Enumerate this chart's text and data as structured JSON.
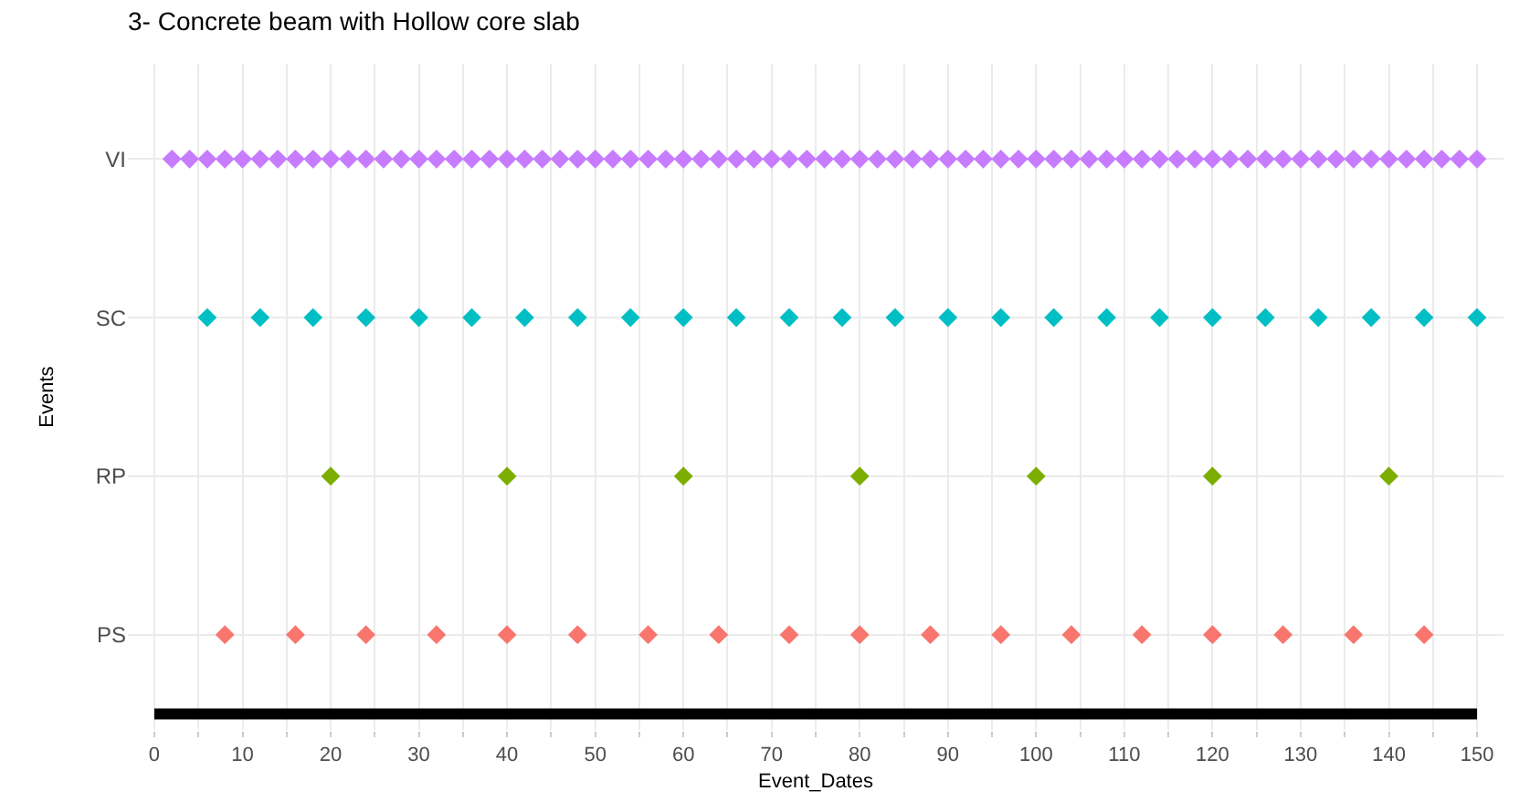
{
  "chart_data": {
    "type": "scatter",
    "orientation": "horizontal",
    "title": "3- Concrete beam with Hollow core slab",
    "xlabel": "Event_Dates",
    "ylabel": "Events",
    "xlim": [
      -3,
      153
    ],
    "xticks": [
      0,
      10,
      20,
      30,
      40,
      50,
      60,
      70,
      80,
      90,
      100,
      110,
      120,
      130,
      140,
      150
    ],
    "categories": [
      "VI",
      "SC",
      "RP",
      "PS"
    ],
    "grid": true,
    "marker": "diamond",
    "series": [
      {
        "colors": [
          "#c77cff",
          "#00bfc4",
          "#7cae00",
          "#f8766d"
        ],
        "values": [
          2,
          6,
          20,
          8
        ]
      },
      {
        "colors": [
          "#c77cff",
          "#00bfc4",
          "#7cae00",
          "#f8766d"
        ],
        "values": [
          4,
          12,
          40,
          16
        ]
      },
      {
        "colors": [
          "#c77cff",
          "#00bfc4",
          "#7cae00",
          "#f8766d"
        ],
        "values": [
          6,
          18,
          60,
          24
        ]
      },
      {
        "colors": [
          "#c77cff",
          "#00bfc4",
          "#7cae00",
          "#f8766d"
        ],
        "values": [
          8,
          24,
          80,
          32
        ]
      },
      {
        "colors": [
          "#c77cff",
          "#00bfc4",
          "#7cae00",
          "#f8766d"
        ],
        "values": [
          10,
          30,
          100,
          40
        ]
      },
      {
        "colors": [
          "#c77cff",
          "#00bfc4",
          "#7cae00",
          "#f8766d"
        ],
        "values": [
          12,
          36,
          120,
          48
        ]
      },
      {
        "colors": [
          "#c77cff",
          "#00bfc4",
          "#7cae00",
          "#f8766d"
        ],
        "values": [
          14,
          42,
          140,
          56
        ]
      },
      {
        "colors": [
          "#c77cff",
          "#00bfc4",
          "#7cae00",
          "#f8766d"
        ],
        "values": [
          16,
          48,
          null,
          64
        ]
      },
      {
        "colors": [
          "#c77cff",
          "#00bfc4",
          "#7cae00",
          "#f8766d"
        ],
        "values": [
          18,
          54,
          null,
          72
        ]
      },
      {
        "colors": [
          "#c77cff",
          "#00bfc4",
          "#7cae00",
          "#f8766d"
        ],
        "values": [
          20,
          60,
          null,
          80
        ]
      },
      {
        "colors": [
          "#c77cff",
          "#00bfc4",
          "#7cae00",
          "#f8766d"
        ],
        "values": [
          22,
          66,
          null,
          88
        ]
      },
      {
        "colors": [
          "#c77cff",
          "#00bfc4",
          "#7cae00",
          "#f8766d"
        ],
        "values": [
          24,
          72,
          null,
          96
        ]
      },
      {
        "colors": [
          "#c77cff",
          "#00bfc4",
          "#7cae00",
          "#f8766d"
        ],
        "values": [
          26,
          78,
          null,
          104
        ]
      },
      {
        "colors": [
          "#c77cff",
          "#00bfc4",
          "#7cae00",
          "#f8766d"
        ],
        "values": [
          28,
          84,
          null,
          112
        ]
      },
      {
        "colors": [
          "#c77cff",
          "#00bfc4",
          "#7cae00",
          "#f8766d"
        ],
        "values": [
          30,
          90,
          null,
          120
        ]
      },
      {
        "colors": [
          "#c77cff",
          "#00bfc4",
          "#7cae00",
          "#f8766d"
        ],
        "values": [
          32,
          96,
          null,
          128
        ]
      },
      {
        "colors": [
          "#c77cff",
          "#00bfc4",
          "#7cae00",
          "#f8766d"
        ],
        "values": [
          34,
          102,
          null,
          136
        ]
      },
      {
        "colors": [
          "#c77cff",
          "#00bfc4",
          "#7cae00",
          "#f8766d"
        ],
        "values": [
          36,
          108,
          null,
          144
        ]
      },
      {
        "colors": [
          "#c77cff",
          "#00bfc4",
          "#7cae00",
          "#f8766d"
        ],
        "values": [
          38,
          114,
          null,
          null
        ]
      },
      {
        "colors": [
          "#c77cff",
          "#00bfc4",
          "#7cae00",
          "#f8766d"
        ],
        "values": [
          40,
          120,
          null,
          null
        ]
      },
      {
        "colors": [
          "#c77cff",
          "#00bfc4",
          "#7cae00",
          "#f8766d"
        ],
        "values": [
          42,
          126,
          null,
          null
        ]
      },
      {
        "colors": [
          "#c77cff",
          "#00bfc4",
          "#7cae00",
          "#f8766d"
        ],
        "values": [
          44,
          132,
          null,
          null
        ]
      },
      {
        "colors": [
          "#c77cff",
          "#00bfc4",
          "#7cae00",
          "#f8766d"
        ],
        "values": [
          46,
          138,
          null,
          null
        ]
      },
      {
        "colors": [
          "#c77cff",
          "#00bfc4",
          "#7cae00",
          "#f8766d"
        ],
        "values": [
          48,
          144,
          null,
          null
        ]
      },
      {
        "colors": [
          "#c77cff",
          "#00bfc4",
          "#7cae00",
          "#f8766d"
        ],
        "values": [
          50,
          150,
          null,
          null
        ]
      },
      {
        "colors": [
          "#c77cff",
          "#00bfc4",
          "#7cae00",
          "#f8766d"
        ],
        "values": [
          52,
          null,
          null,
          null
        ]
      },
      {
        "colors": [
          "#c77cff",
          "#00bfc4",
          "#7cae00",
          "#f8766d"
        ],
        "values": [
          54,
          null,
          null,
          null
        ]
      },
      {
        "colors": [
          "#c77cff",
          "#00bfc4",
          "#7cae00",
          "#f8766d"
        ],
        "values": [
          56,
          null,
          null,
          null
        ]
      },
      {
        "colors": [
          "#c77cff",
          "#00bfc4",
          "#7cae00",
          "#f8766d"
        ],
        "values": [
          58,
          null,
          null,
          null
        ]
      },
      {
        "colors": [
          "#c77cff",
          "#00bfc4",
          "#7cae00",
          "#f8766d"
        ],
        "values": [
          60,
          null,
          null,
          null
        ]
      },
      {
        "colors": [
          "#c77cff",
          "#00bfc4",
          "#7cae00",
          "#f8766d"
        ],
        "values": [
          62,
          null,
          null,
          null
        ]
      },
      {
        "colors": [
          "#c77cff",
          "#00bfc4",
          "#7cae00",
          "#f8766d"
        ],
        "values": [
          64,
          null,
          null,
          null
        ]
      },
      {
        "colors": [
          "#c77cff",
          "#00bfc4",
          "#7cae00",
          "#f8766d"
        ],
        "values": [
          66,
          null,
          null,
          null
        ]
      },
      {
        "colors": [
          "#c77cff",
          "#00bfc4",
          "#7cae00",
          "#f8766d"
        ],
        "values": [
          68,
          null,
          null,
          null
        ]
      },
      {
        "colors": [
          "#c77cff",
          "#00bfc4",
          "#7cae00",
          "#f8766d"
        ],
        "values": [
          70,
          null,
          null,
          null
        ]
      },
      {
        "colors": [
          "#c77cff",
          "#00bfc4",
          "#7cae00",
          "#f8766d"
        ],
        "values": [
          72,
          null,
          null,
          null
        ]
      },
      {
        "colors": [
          "#c77cff",
          "#00bfc4",
          "#7cae00",
          "#f8766d"
        ],
        "values": [
          74,
          null,
          null,
          null
        ]
      },
      {
        "colors": [
          "#c77cff",
          "#00bfc4",
          "#7cae00",
          "#f8766d"
        ],
        "values": [
          76,
          null,
          null,
          null
        ]
      },
      {
        "colors": [
          "#c77cff",
          "#00bfc4",
          "#7cae00",
          "#f8766d"
        ],
        "values": [
          78,
          null,
          null,
          null
        ]
      },
      {
        "colors": [
          "#c77cff",
          "#00bfc4",
          "#7cae00",
          "#f8766d"
        ],
        "values": [
          80,
          null,
          null,
          null
        ]
      },
      {
        "colors": [
          "#c77cff",
          "#00bfc4",
          "#7cae00",
          "#f8766d"
        ],
        "values": [
          82,
          null,
          null,
          null
        ]
      },
      {
        "colors": [
          "#c77cff",
          "#00bfc4",
          "#7cae00",
          "#f8766d"
        ],
        "values": [
          84,
          null,
          null,
          null
        ]
      },
      {
        "colors": [
          "#c77cff",
          "#00bfc4",
          "#7cae00",
          "#f8766d"
        ],
        "values": [
          86,
          null,
          null,
          null
        ]
      },
      {
        "colors": [
          "#c77cff",
          "#00bfc4",
          "#7cae00",
          "#f8766d"
        ],
        "values": [
          88,
          null,
          null,
          null
        ]
      },
      {
        "colors": [
          "#c77cff",
          "#00bfc4",
          "#7cae00",
          "#f8766d"
        ],
        "values": [
          90,
          null,
          null,
          null
        ]
      },
      {
        "colors": [
          "#c77cff",
          "#00bfc4",
          "#7cae00",
          "#f8766d"
        ],
        "values": [
          92,
          null,
          null,
          null
        ]
      },
      {
        "colors": [
          "#c77cff",
          "#00bfc4",
          "#7cae00",
          "#f8766d"
        ],
        "values": [
          94,
          null,
          null,
          null
        ]
      },
      {
        "colors": [
          "#c77cff",
          "#00bfc4",
          "#7cae00",
          "#f8766d"
        ],
        "values": [
          96,
          null,
          null,
          null
        ]
      },
      {
        "colors": [
          "#c77cff",
          "#00bfc4",
          "#7cae00",
          "#f8766d"
        ],
        "values": [
          98,
          null,
          null,
          null
        ]
      },
      {
        "colors": [
          "#c77cff",
          "#00bfc4",
          "#7cae00",
          "#f8766d"
        ],
        "values": [
          100,
          null,
          null,
          null
        ]
      },
      {
        "colors": [
          "#c77cff",
          "#00bfc4",
          "#7cae00",
          "#f8766d"
        ],
        "values": [
          102,
          null,
          null,
          null
        ]
      },
      {
        "colors": [
          "#c77cff",
          "#00bfc4",
          "#7cae00",
          "#f8766d"
        ],
        "values": [
          104,
          null,
          null,
          null
        ]
      },
      {
        "colors": [
          "#c77cff",
          "#00bfc4",
          "#7cae00",
          "#f8766d"
        ],
        "values": [
          106,
          null,
          null,
          null
        ]
      },
      {
        "colors": [
          "#c77cff",
          "#00bfc4",
          "#7cae00",
          "#f8766d"
        ],
        "values": [
          108,
          null,
          null,
          null
        ]
      },
      {
        "colors": [
          "#c77cff",
          "#00bfc4",
          "#7cae00",
          "#f8766d"
        ],
        "values": [
          110,
          null,
          null,
          null
        ]
      },
      {
        "colors": [
          "#c77cff",
          "#00bfc4",
          "#7cae00",
          "#f8766d"
        ],
        "values": [
          112,
          null,
          null,
          null
        ]
      },
      {
        "colors": [
          "#c77cff",
          "#00bfc4",
          "#7cae00",
          "#f8766d"
        ],
        "values": [
          114,
          null,
          null,
          null
        ]
      },
      {
        "colors": [
          "#c77cff",
          "#00bfc4",
          "#7cae00",
          "#f8766d"
        ],
        "values": [
          116,
          null,
          null,
          null
        ]
      },
      {
        "colors": [
          "#c77cff",
          "#00bfc4",
          "#7cae00",
          "#f8766d"
        ],
        "values": [
          118,
          null,
          null,
          null
        ]
      },
      {
        "colors": [
          "#c77cff",
          "#00bfc4",
          "#7cae00",
          "#f8766d"
        ],
        "values": [
          120,
          null,
          null,
          null
        ]
      },
      {
        "colors": [
          "#c77cff",
          "#00bfc4",
          "#7cae00",
          "#f8766d"
        ],
        "values": [
          122,
          null,
          null,
          null
        ]
      },
      {
        "colors": [
          "#c77cff",
          "#00bfc4",
          "#7cae00",
          "#f8766d"
        ],
        "values": [
          124,
          null,
          null,
          null
        ]
      },
      {
        "colors": [
          "#c77cff",
          "#00bfc4",
          "#7cae00",
          "#f8766d"
        ],
        "values": [
          126,
          null,
          null,
          null
        ]
      },
      {
        "colors": [
          "#c77cff",
          "#00bfc4",
          "#7cae00",
          "#f8766d"
        ],
        "values": [
          128,
          null,
          null,
          null
        ]
      },
      {
        "colors": [
          "#c77cff",
          "#00bfc4",
          "#7cae00",
          "#f8766d"
        ],
        "values": [
          130,
          null,
          null,
          null
        ]
      },
      {
        "colors": [
          "#c77cff",
          "#00bfc4",
          "#7cae00",
          "#f8766d"
        ],
        "values": [
          132,
          null,
          null,
          null
        ]
      },
      {
        "colors": [
          "#c77cff",
          "#00bfc4",
          "#7cae00",
          "#f8766d"
        ],
        "values": [
          134,
          null,
          null,
          null
        ]
      },
      {
        "colors": [
          "#c77cff",
          "#00bfc4",
          "#7cae00",
          "#f8766d"
        ],
        "values": [
          136,
          null,
          null,
          null
        ]
      },
      {
        "colors": [
          "#c77cff",
          "#00bfc4",
          "#7cae00",
          "#f8766d"
        ],
        "values": [
          138,
          null,
          null,
          null
        ]
      },
      {
        "colors": [
          "#c77cff",
          "#00bfc4",
          "#7cae00",
          "#f8766d"
        ],
        "values": [
          140,
          null,
          null,
          null
        ]
      },
      {
        "colors": [
          "#c77cff",
          "#00bfc4",
          "#7cae00",
          "#f8766d"
        ],
        "values": [
          142,
          null,
          null,
          null
        ]
      },
      {
        "colors": [
          "#c77cff",
          "#00bfc4",
          "#7cae00",
          "#f8766d"
        ],
        "values": [
          144,
          null,
          null,
          null
        ]
      },
      {
        "colors": [
          "#c77cff",
          "#00bfc4",
          "#7cae00",
          "#f8766d"
        ],
        "values": [
          146,
          null,
          null,
          null
        ]
      },
      {
        "colors": [
          "#c77cff",
          "#00bfc4",
          "#7cae00",
          "#f8766d"
        ],
        "values": [
          148,
          null,
          null,
          null
        ]
      },
      {
        "colors": [
          "#c77cff",
          "#00bfc4",
          "#7cae00",
          "#f8766d"
        ],
        "values": [
          150,
          null,
          null,
          null
        ]
      }
    ]
  }
}
